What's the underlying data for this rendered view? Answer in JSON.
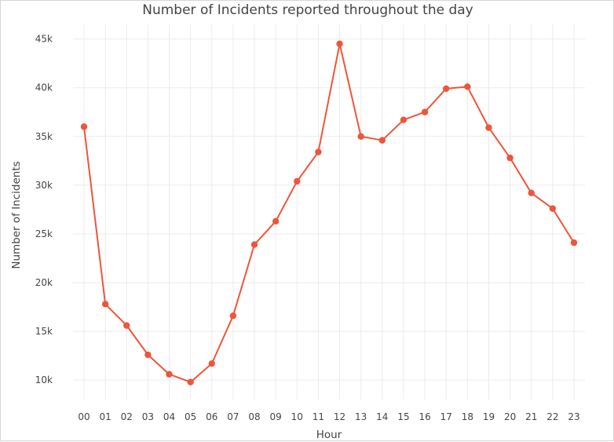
{
  "chart_data": {
    "type": "line",
    "title": "Number of Incidents reported throughout the day",
    "xlabel": "Hour",
    "ylabel": "Number of Incidents",
    "categories": [
      "00",
      "01",
      "02",
      "03",
      "04",
      "05",
      "06",
      "07",
      "08",
      "09",
      "10",
      "11",
      "12",
      "13",
      "14",
      "15",
      "16",
      "17",
      "18",
      "19",
      "20",
      "21",
      "22",
      "23"
    ],
    "series": [
      {
        "values": [
          36000,
          17800,
          15600,
          12600,
          10600,
          9800,
          11700,
          16600,
          23900,
          26300,
          30400,
          33400,
          44500,
          35000,
          34600,
          36700,
          37500,
          39900,
          40100,
          35900,
          32800,
          29200,
          27600,
          24100
        ]
      }
    ],
    "ylim": [
      8000,
      46500
    ],
    "y_ticks": [
      10000,
      15000,
      20000,
      25000,
      30000,
      35000,
      40000,
      45000
    ],
    "y_tick_labels": [
      "10k",
      "15k",
      "20k",
      "25k",
      "30k",
      "35k",
      "40k",
      "45k"
    ],
    "grid": true,
    "legend": "none",
    "colors": {
      "line": "#EF553B",
      "grid": "#ebebeb",
      "text": "#444444"
    }
  }
}
